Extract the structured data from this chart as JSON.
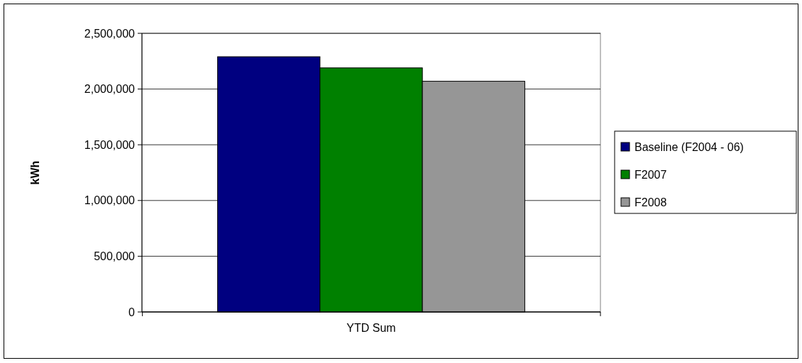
{
  "chart_data": {
    "type": "bar",
    "categories": [
      "YTD Sum"
    ],
    "ylabel": "kWh",
    "series": [
      {
        "name": "Baseline (F2004 - 06)",
        "color": "#000080",
        "values": [
          2290000
        ]
      },
      {
        "name": "F2007",
        "color": "#008000",
        "values": [
          2190000
        ]
      },
      {
        "name": "F2008",
        "color": "#969696",
        "values": [
          2070000
        ]
      }
    ],
    "ylim": [
      0,
      2500000
    ],
    "yticks": [
      {
        "value": 0,
        "label": "0"
      },
      {
        "value": 500000,
        "label": "500,000"
      },
      {
        "value": 1000000,
        "label": "1,000,000"
      },
      {
        "value": 1500000,
        "label": "1,500,000"
      },
      {
        "value": 2000000,
        "label": "2,000,000"
      },
      {
        "value": 2500000,
        "label": "2,500,000"
      }
    ],
    "grid": "y",
    "legend": "right"
  }
}
